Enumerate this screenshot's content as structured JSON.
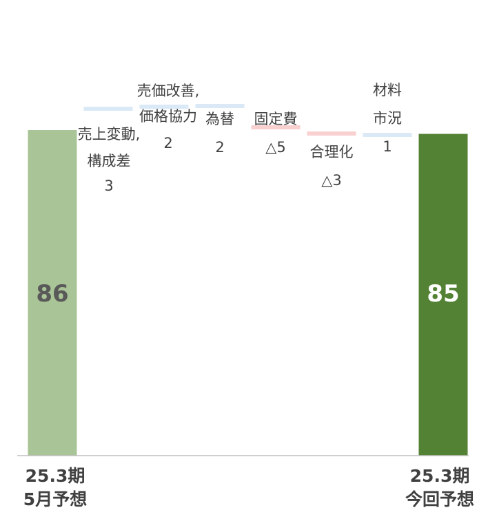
{
  "chart_data": {
    "type": "waterfall",
    "title": "",
    "xlabel": "",
    "ylabel": "",
    "ylim": [
      0,
      86
    ],
    "grid": false,
    "legend": "none",
    "bars": [
      {
        "kind": "total",
        "label_lines": [],
        "value_label": "86",
        "value": 86,
        "color": "#a9c497",
        "text_color": "#595959"
      },
      {
        "kind": "step",
        "label_lines": [
          "売上変動,",
          "構成差"
        ],
        "value_label": "3",
        "value": 3,
        "color": "#dbe9f7"
      },
      {
        "kind": "step",
        "label_lines": [
          "売価改善,",
          "価格協力"
        ],
        "value_label": "2",
        "value": 2,
        "color": "#dbe9f7"
      },
      {
        "kind": "step",
        "label_lines": [
          "為替"
        ],
        "value_label": "2",
        "value": 2,
        "color": "#dbe9f7"
      },
      {
        "kind": "step",
        "label_lines": [
          "固定費"
        ],
        "value_label": "△5",
        "value": -5,
        "color": "#f9d0d0"
      },
      {
        "kind": "step",
        "label_lines": [
          "合理化"
        ],
        "value_label": "△3",
        "value": -3,
        "color": "#f9d0d0"
      },
      {
        "kind": "step",
        "label_lines": [
          "材料",
          "市況"
        ],
        "value_label": "1",
        "value": 1,
        "color": "#dbe9f7"
      },
      {
        "kind": "total",
        "label_lines": [],
        "value_label": "85",
        "value": 85,
        "color": "#548235",
        "text_color": "#ffffff"
      }
    ],
    "categories": [
      {
        "lines": [
          "25.3期",
          "5月予想"
        ]
      },
      {
        "lines": [
          "25.3期",
          "今回予想"
        ]
      }
    ]
  }
}
